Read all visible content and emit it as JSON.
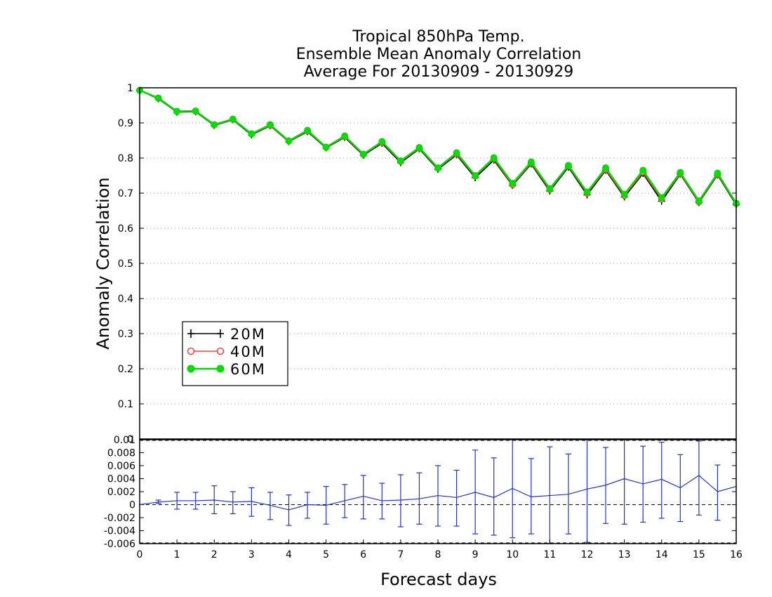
{
  "chart_data": [
    {
      "type": "line",
      "title": [
        "Tropical 850hPa Temp.",
        "Ensemble Mean Anomaly Correlation",
        "Average For 20130909 - 20130929"
      ],
      "xlabel": "Forecast days",
      "ylabel": "Anomaly Correlation",
      "xlim": [
        0,
        16
      ],
      "ylim": [
        0,
        1
      ],
      "yticks": [
        0,
        0.1,
        0.2,
        0.3,
        0.4,
        0.5,
        0.6,
        0.7,
        0.8,
        0.9,
        1
      ],
      "ytick_labels": [
        "0",
        "0.1",
        "0.2",
        "0.3",
        "0.4",
        "0.5",
        "0.6",
        "0.7",
        "0.8",
        "0.9",
        "1"
      ],
      "grid": "horizontal dotted",
      "legend": "lower-left",
      "x": [
        0,
        0.5,
        1,
        1.5,
        2,
        2.5,
        3,
        3.5,
        4,
        4.5,
        5,
        5.5,
        6,
        6.5,
        7,
        7.5,
        8,
        8.5,
        9,
        9.5,
        10,
        10.5,
        11,
        11.5,
        12,
        12.5,
        13,
        13.5,
        14,
        14.5,
        15,
        15.5,
        16
      ],
      "series": [
        {
          "name": "20M",
          "color": "#000000",
          "marker": "plus",
          "values": [
            0.993,
            0.969,
            0.931,
            0.932,
            0.893,
            0.909,
            0.866,
            0.892,
            0.847,
            0.875,
            0.829,
            0.859,
            0.808,
            0.842,
            0.787,
            0.826,
            0.768,
            0.809,
            0.744,
            0.794,
            0.722,
            0.783,
            0.706,
            0.774,
            0.695,
            0.765,
            0.689,
            0.756,
            0.677,
            0.754,
            0.673,
            0.752,
            0.667
          ]
        },
        {
          "name": "40M",
          "color": "#ff4040",
          "marker": "open-circle",
          "values": [
            0.993,
            0.97,
            0.932,
            0.933,
            0.894,
            0.91,
            0.868,
            0.893,
            0.848,
            0.877,
            0.83,
            0.861,
            0.81,
            0.845,
            0.79,
            0.828,
            0.771,
            0.812,
            0.748,
            0.798,
            0.724,
            0.786,
            0.71,
            0.777,
            0.7,
            0.768,
            0.693,
            0.76,
            0.683,
            0.756,
            0.675,
            0.754,
            0.67
          ]
        },
        {
          "name": "60M",
          "color": "#00dd00",
          "marker": "filled-circle",
          "values": [
            0.993,
            0.971,
            0.933,
            0.934,
            0.895,
            0.911,
            0.869,
            0.895,
            0.849,
            0.879,
            0.831,
            0.863,
            0.811,
            0.847,
            0.792,
            0.83,
            0.772,
            0.815,
            0.75,
            0.801,
            0.728,
            0.789,
            0.713,
            0.779,
            0.703,
            0.772,
            0.697,
            0.765,
            0.687,
            0.759,
            0.678,
            0.757,
            0.671
          ]
        }
      ]
    },
    {
      "type": "line",
      "xlabel": "Forecast days",
      "xlim": [
        0,
        16
      ],
      "xticks": [
        0,
        1,
        2,
        3,
        4,
        5,
        6,
        7,
        8,
        9,
        10,
        11,
        12,
        13,
        14,
        15,
        16
      ],
      "xtick_labels": [
        "0",
        "1",
        "2",
        "3",
        "4",
        "5",
        "6",
        "7",
        "8",
        "9",
        "10",
        "11",
        "12",
        "13",
        "14",
        "15",
        "16"
      ],
      "ylim": [
        -0.006,
        0.01
      ],
      "yticks": [
        -0.006,
        -0.004,
        -0.002,
        0,
        0.002,
        0.004,
        0.006,
        0.008,
        0.01
      ],
      "ytick_labels": [
        "-0.006",
        "-0.004",
        "-0.002",
        "0",
        "0.002",
        "0.004",
        "0.006",
        "0.008",
        "0.01"
      ],
      "zero_line": "dashed",
      "color": "#2233cc",
      "x": [
        0,
        0.5,
        1,
        1.5,
        2,
        2.5,
        3,
        3.5,
        4,
        4.5,
        5,
        5.5,
        6,
        6.5,
        7,
        7.5,
        8,
        8.5,
        9,
        9.5,
        10,
        10.5,
        11,
        11.5,
        12,
        12.5,
        13,
        13.5,
        14,
        14.5,
        15,
        15.5,
        16
      ],
      "values": [
        0,
        0.0004,
        0.0006,
        0.0006,
        0.0007,
        0.0004,
        0.0005,
        -0.0001,
        -0.0008,
        0,
        -0.0001,
        0.0006,
        0.0013,
        0.0006,
        0.0007,
        0.0009,
        0.0014,
        0.0011,
        0.0019,
        0.0011,
        0.0025,
        0.0012,
        0.0014,
        0.0016,
        0.0024,
        0.003,
        0.004,
        0.0032,
        0.0039,
        0.0026,
        0.0045,
        0.002,
        0.0028
      ],
      "err_low": [
        null,
        0.0002,
        -0.0007,
        -0.0007,
        -0.0014,
        -0.0014,
        -0.0018,
        -0.0023,
        -0.0032,
        -0.0021,
        -0.003,
        -0.002,
        -0.0022,
        -0.0022,
        -0.0034,
        -0.003,
        -0.0033,
        -0.0033,
        -0.0045,
        -0.0047,
        -0.0051,
        -0.0045,
        -0.006,
        -0.0045,
        -0.0058,
        -0.0029,
        -0.003,
        -0.0027,
        -0.0021,
        -0.0026,
        -0.0016,
        -0.0024,
        null
      ],
      "err_high": [
        null,
        0.0007,
        0.0019,
        0.0019,
        0.0029,
        0.002,
        0.0026,
        0.0019,
        0.0015,
        0.0019,
        0.0028,
        0.0031,
        0.0045,
        0.0033,
        0.0046,
        0.0049,
        0.006,
        0.0053,
        0.0084,
        0.0072,
        0.0102,
        0.0071,
        0.0089,
        0.0078,
        0.0106,
        0.0088,
        0.0103,
        0.009,
        0.0096,
        0.0077,
        0.0098,
        0.0061,
        null
      ]
    }
  ]
}
